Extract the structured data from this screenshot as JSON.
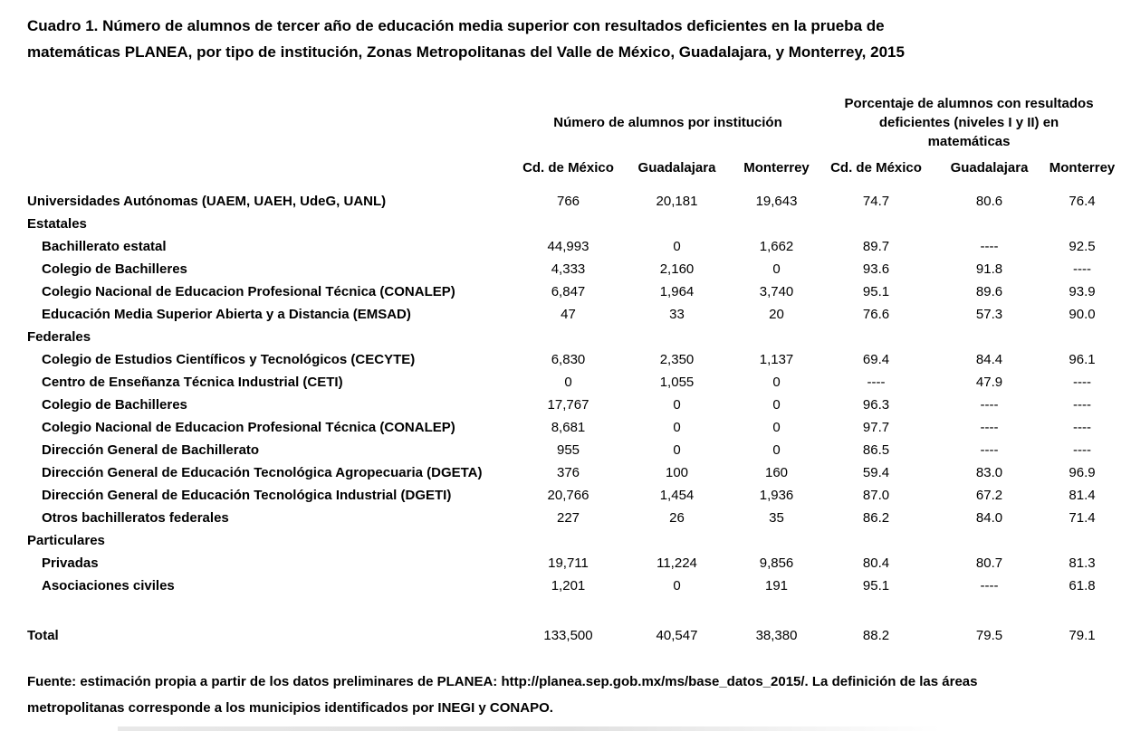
{
  "title_lines": [
    "Cuadro 1. Número de alumnos de tercer año de educación media superior con resultados deficientes en la prueba de",
    "matemáticas PLANEA, por tipo de institución, Zonas Metropolitanas del Valle de México, Guadalajara, y Monterrey, 2015"
  ],
  "table": {
    "group_headers": {
      "left": "Número de alumnos por institución",
      "right_lines": [
        "Porcentaje de alumnos con resultados",
        "deficientes (niveles I y II) en",
        "matemáticas"
      ]
    },
    "city_headers": [
      "Cd. de México",
      "Guadalajara",
      "Monterrey",
      "Cd. de México",
      "Guadalajara",
      "Monterrey"
    ],
    "no_data_marker": "----",
    "rows": [
      {
        "type": "data",
        "indent": false,
        "label": "Universidades Autónomas (UAEM, UAEH, UdeG, UANL)",
        "values": [
          "766",
          "20,181",
          "19,643",
          "74.7",
          "80.6",
          "76.4"
        ]
      },
      {
        "type": "group",
        "indent": false,
        "label": "Estatales",
        "values": [
          "",
          "",
          "",
          "",
          "",
          ""
        ]
      },
      {
        "type": "data",
        "indent": true,
        "label": "Bachillerato estatal",
        "values": [
          "44,993",
          "0",
          "1,662",
          "89.7",
          "----",
          "92.5"
        ]
      },
      {
        "type": "data",
        "indent": true,
        "label": "Colegio de Bachilleres",
        "values": [
          "4,333",
          "2,160",
          "0",
          "93.6",
          "91.8",
          "----"
        ]
      },
      {
        "type": "data",
        "indent": true,
        "label": "Colegio Nacional de Educacion Profesional Técnica (CONALEP)",
        "values": [
          "6,847",
          "1,964",
          "3,740",
          "95.1",
          "89.6",
          "93.9"
        ]
      },
      {
        "type": "data",
        "indent": true,
        "label": "Educación Media Superior Abierta y a Distancia (EMSAD)",
        "values": [
          "47",
          "33",
          "20",
          "76.6",
          "57.3",
          "90.0"
        ]
      },
      {
        "type": "group",
        "indent": false,
        "label": "Federales",
        "values": [
          "",
          "",
          "",
          "",
          "",
          ""
        ]
      },
      {
        "type": "data",
        "indent": true,
        "label": "Colegio de Estudios Científicos y Tecnológicos (CECYTE)",
        "values": [
          "6,830",
          "2,350",
          "1,137",
          "69.4",
          "84.4",
          "96.1"
        ]
      },
      {
        "type": "data",
        "indent": true,
        "label": "Centro de Enseñanza Técnica Industrial (CETI)",
        "values": [
          "0",
          "1,055",
          "0",
          "----",
          "47.9",
          "----"
        ]
      },
      {
        "type": "data",
        "indent": true,
        "label": "Colegio de Bachilleres",
        "values": [
          "17,767",
          "0",
          "0",
          "96.3",
          "----",
          "----"
        ]
      },
      {
        "type": "data",
        "indent": true,
        "label": "Colegio Nacional de Educacion Profesional Técnica (CONALEP)",
        "values": [
          "8,681",
          "0",
          "0",
          "97.7",
          "----",
          "----"
        ]
      },
      {
        "type": "data",
        "indent": true,
        "label": "Dirección General de Bachillerato",
        "values": [
          "955",
          "0",
          "0",
          "86.5",
          "----",
          "----"
        ]
      },
      {
        "type": "data",
        "indent": true,
        "label": "Dirección General de Educación Tecnológica Agropecuaria (DGETA)",
        "values": [
          "376",
          "100",
          "160",
          "59.4",
          "83.0",
          "96.9"
        ]
      },
      {
        "type": "data",
        "indent": true,
        "label": "Dirección General de Educación Tecnológica Industrial (DGETI)",
        "values": [
          "20,766",
          "1,454",
          "1,936",
          "87.0",
          "67.2",
          "81.4"
        ]
      },
      {
        "type": "data",
        "indent": true,
        "label": "Otros bachilleratos federales",
        "values": [
          "227",
          "26",
          "35",
          "86.2",
          "84.0",
          "71.4"
        ]
      },
      {
        "type": "group",
        "indent": false,
        "label": "Particulares",
        "values": [
          "",
          "",
          "",
          "",
          "",
          ""
        ]
      },
      {
        "type": "data",
        "indent": true,
        "label": "Privadas",
        "values": [
          "19,711",
          "11,224",
          "9,856",
          "80.4",
          "80.7",
          "81.3"
        ]
      },
      {
        "type": "data",
        "indent": true,
        "label": "Asociaciones civiles",
        "values": [
          "1,201",
          "0",
          "191",
          "95.1",
          "----",
          "61.8"
        ]
      },
      {
        "type": "spacer",
        "indent": false,
        "label": "",
        "values": [
          "",
          "",
          "",
          "",
          "",
          ""
        ]
      },
      {
        "type": "total",
        "indent": false,
        "label": "Total",
        "values": [
          "133,500",
          "40,547",
          "38,380",
          "88.2",
          "79.5",
          "79.1"
        ]
      }
    ]
  },
  "footnote_lines": [
    "Fuente: estimación propia a partir de los datos preliminares de PLANEA: http://planea.sep.gob.mx/ms/base_datos_2015/. La definición de las áreas",
    "metropolitanas corresponde a los municipios identificados por INEGI y CONAPO."
  ]
}
